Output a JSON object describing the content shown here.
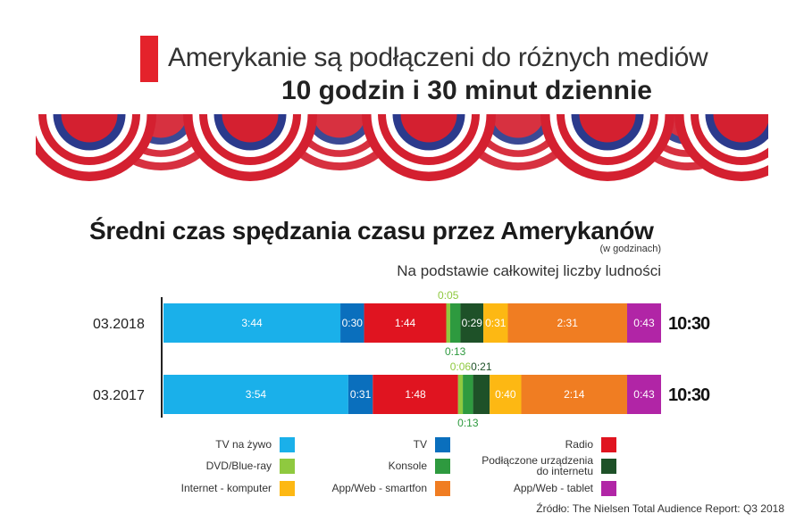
{
  "header": {
    "line1": "Amerykanie są podłączeni do różnych mediów",
    "line2": "10 godzin i 30 minut dziennie"
  },
  "chart_data": {
    "type": "bar",
    "orientation": "horizontal-stacked",
    "title": "Średni czas spędzania czasu przez Amerykanów",
    "units": "(w godzinach)",
    "subtitle": "Na podstawie całkowitej liczby ludności",
    "categories": [
      "03.2018",
      "03.2017"
    ],
    "totals": [
      "10:30",
      "10:30"
    ],
    "series": [
      {
        "name": "TV na żywo",
        "color": "#1ab0ea",
        "values": [
          "3:44",
          "3:54"
        ]
      },
      {
        "name": "TV",
        "color": "#0a6fbd",
        "values": [
          "0:30",
          "0:31"
        ]
      },
      {
        "name": "Radio",
        "color": "#e01420",
        "values": [
          "1:44",
          "1:48"
        ]
      },
      {
        "name": "DVD/Blue-ray",
        "color": "#8fc93f",
        "values": [
          "0:05",
          "0:06"
        ]
      },
      {
        "name": "Konsole",
        "color": "#2e9a3f",
        "values": [
          "0:13",
          "0:13"
        ]
      },
      {
        "name": "Podłączone urządzenia do internetu",
        "color": "#1e5128",
        "values": [
          "0:29",
          "0:21"
        ]
      },
      {
        "name": "Internet - komputer",
        "color": "#fdb813",
        "values": [
          "0:31",
          "0:40"
        ]
      },
      {
        "name": "App/Web - smartfon",
        "color": "#f07d22",
        "values": [
          "2:31",
          "2:14"
        ]
      },
      {
        "name": "App/Web - tablet",
        "color": "#b125a6",
        "values": [
          "0:43",
          "0:43"
        ]
      }
    ]
  },
  "legend": [
    {
      "label": "TV na żywo",
      "color": "#1ab0ea"
    },
    {
      "label": "TV",
      "color": "#0a6fbd"
    },
    {
      "label": "Radio",
      "color": "#e01420"
    },
    {
      "label": "DVD/Blue-ray",
      "color": "#8fc93f"
    },
    {
      "label": "Konsole",
      "color": "#2e9a3f"
    },
    {
      "label": "Podłączone urządzenia do internetu",
      "color": "#1e5128"
    },
    {
      "label": "Internet - komputer",
      "color": "#fdb813"
    },
    {
      "label": "App/Web - smartfon",
      "color": "#f07d22"
    },
    {
      "label": "App/Web - tablet",
      "color": "#b125a6"
    }
  ],
  "source": "Źródło: The Nielsen Total Audience Report: Q3 2018",
  "colors": {
    "accent": "#e4222b",
    "flag_red": "#d42030",
    "flag_blue": "#2b3a8c"
  }
}
